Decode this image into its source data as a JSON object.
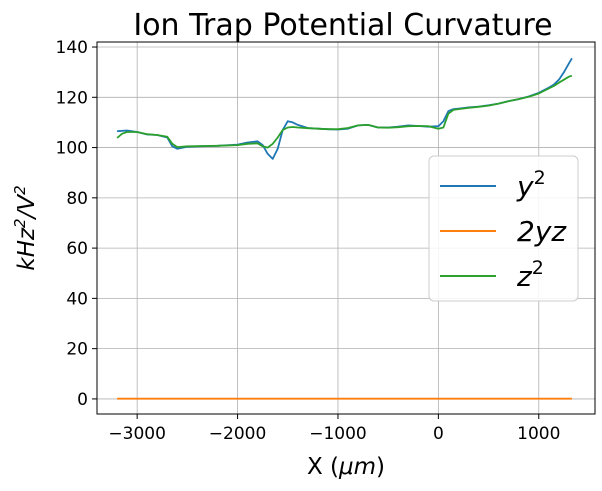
{
  "chart_data": {
    "type": "line",
    "title": "Ion Trap Potential Curvature",
    "xlabel": "X (μm)",
    "ylabel": "kHz²/V²",
    "xlim": [
      -3400,
      1560
    ],
    "ylim": [
      -6,
      142
    ],
    "xticks": [
      -3000,
      -2000,
      -1000,
      0,
      1000
    ],
    "xtick_labels": [
      "−3000",
      "−2000",
      "−1000",
      "0",
      "1000"
    ],
    "yticks": [
      0,
      20,
      40,
      60,
      80,
      100,
      120,
      140
    ],
    "ytick_labels": [
      "0",
      "20",
      "40",
      "60",
      "80",
      "100",
      "120",
      "140"
    ],
    "grid": true,
    "legend_position": "center-right",
    "series": [
      {
        "name": "y²",
        "color": "#1f77b4",
        "x": [
          -3200,
          -3100,
          -3000,
          -2900,
          -2800,
          -2700,
          -2650,
          -2600,
          -2500,
          -2400,
          -2200,
          -2000,
          -1900,
          -1800,
          -1750,
          -1700,
          -1650,
          -1600,
          -1550,
          -1500,
          -1450,
          -1400,
          -1300,
          -1200,
          -1100,
          -1000,
          -900,
          -800,
          -700,
          -600,
          -500,
          -400,
          -300,
          -200,
          -100,
          0,
          50,
          100,
          150,
          200,
          300,
          400,
          500,
          600,
          700,
          800,
          900,
          1000,
          1100,
          1150,
          1200,
          1250,
          1300,
          1330
        ],
        "y": [
          106.5,
          106.8,
          106.2,
          105.2,
          105.0,
          104.0,
          100.5,
          99.5,
          100.3,
          100.5,
          100.7,
          101.2,
          102.0,
          102.5,
          101.0,
          97.5,
          95.5,
          99.5,
          107.0,
          110.5,
          110.0,
          109.0,
          107.8,
          107.5,
          107.3,
          107.2,
          107.5,
          108.8,
          109.0,
          108.0,
          108.0,
          108.3,
          108.8,
          108.6,
          108.3,
          108.5,
          110.5,
          114.5,
          115.3,
          115.5,
          116.0,
          116.3,
          116.8,
          117.5,
          118.5,
          119.3,
          120.3,
          121.8,
          123.8,
          125.0,
          127.0,
          130.0,
          133.5,
          135.5
        ]
      },
      {
        "name": "2yz",
        "color": "#ff7f0e",
        "x": [
          -3200,
          -2000,
          -1000,
          0,
          1000,
          1330
        ],
        "y": [
          0.1,
          0.1,
          0.1,
          0.1,
          0.1,
          0.1
        ]
      },
      {
        "name": "z²",
        "color": "#2ca02c",
        "x": [
          -3200,
          -3150,
          -3100,
          -3000,
          -2900,
          -2800,
          -2700,
          -2650,
          -2600,
          -2500,
          -2400,
          -2200,
          -2000,
          -1900,
          -1800,
          -1750,
          -1700,
          -1650,
          -1600,
          -1550,
          -1500,
          -1450,
          -1400,
          -1300,
          -1200,
          -1100,
          -1000,
          -900,
          -800,
          -700,
          -600,
          -500,
          -400,
          -300,
          -200,
          -100,
          0,
          50,
          100,
          150,
          200,
          300,
          400,
          500,
          600,
          700,
          800,
          900,
          1000,
          1100,
          1150,
          1200,
          1250,
          1300,
          1330
        ],
        "y": [
          103.8,
          105.5,
          106.2,
          106.2,
          105.3,
          105.0,
          104.3,
          101.5,
          100.2,
          100.5,
          100.6,
          100.7,
          101.0,
          101.5,
          101.7,
          100.5,
          100.0,
          101.5,
          104.0,
          107.0,
          108.0,
          108.2,
          108.0,
          107.7,
          107.5,
          107.3,
          107.3,
          107.8,
          108.8,
          109.0,
          108.0,
          107.9,
          108.1,
          108.5,
          108.6,
          108.5,
          107.5,
          108.0,
          113.5,
          115.0,
          115.3,
          115.8,
          116.2,
          116.7,
          117.5,
          118.5,
          119.3,
          120.2,
          121.5,
          123.5,
          124.5,
          125.8,
          127.0,
          128.2,
          128.6
        ]
      }
    ]
  }
}
